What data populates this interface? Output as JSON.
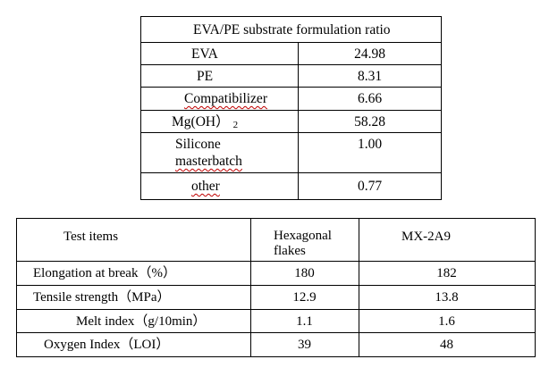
{
  "table1": {
    "title": "EVA/PE substrate formulation ratio",
    "rows": [
      {
        "name": "EVA",
        "value": "24.98"
      },
      {
        "name": "PE",
        "value": "8.31"
      },
      {
        "name": "Compatibilizer",
        "value": "6.66"
      },
      {
        "name_main": "Mg(OH）",
        "name_sub": "2",
        "value": "58.28"
      },
      {
        "name_line1": "Silicone",
        "name_line2": "masterbatch",
        "value": "1.00"
      },
      {
        "name": "other",
        "value": "0.77"
      }
    ]
  },
  "table2": {
    "headers": {
      "item": "Test items",
      "col1_line1": "Hexagonal",
      "col1_line2": "flakes",
      "col2": "MX-2A9"
    },
    "rows": [
      {
        "item": "Elongation at break（%）",
        "col1": "180",
        "col2": "182"
      },
      {
        "item": "Tensile strength（MPa）",
        "col1": "12.9",
        "col2": "13.8"
      },
      {
        "item": "Melt index（g/10min）",
        "col1": "1.1",
        "col2": "1.6"
      },
      {
        "item": "Oxygen Index（LOI）",
        "col1": "39",
        "col2": "48"
      }
    ]
  }
}
